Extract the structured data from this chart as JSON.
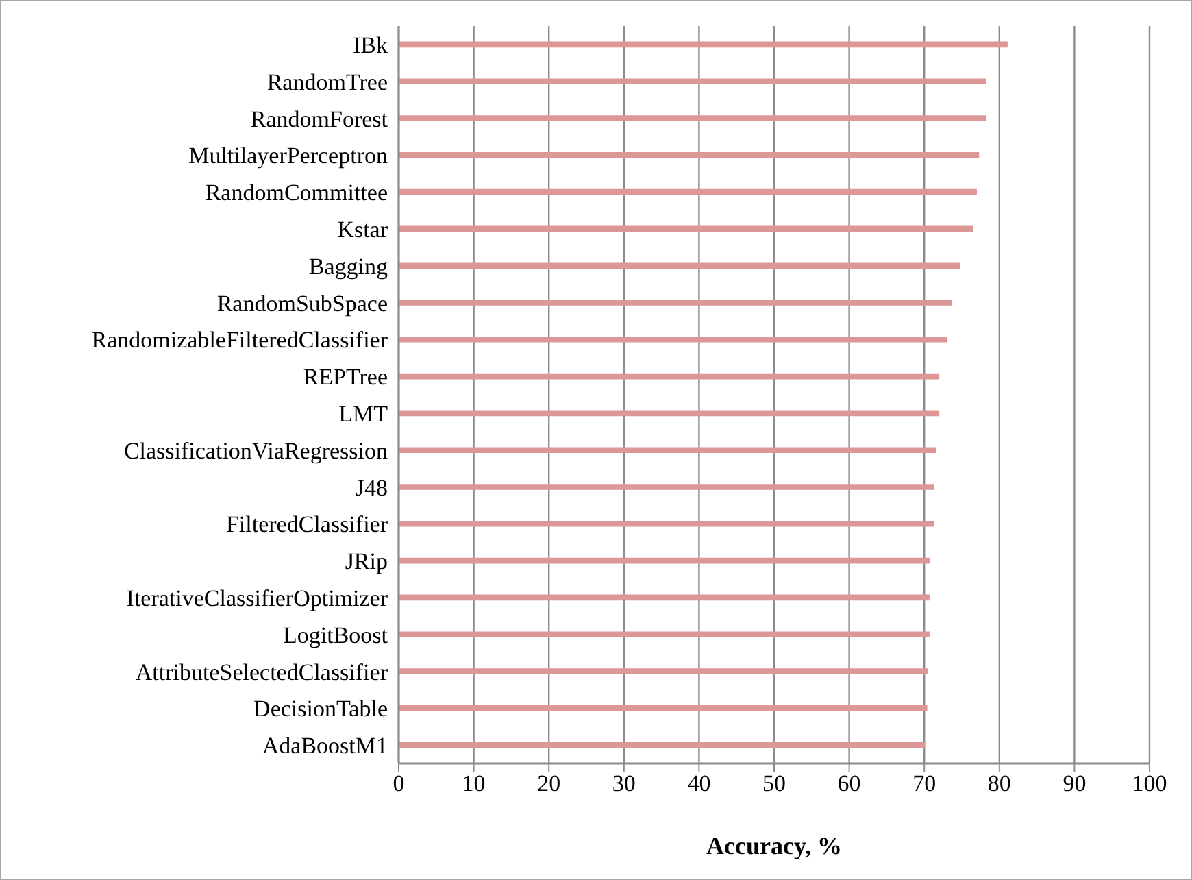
{
  "chart_data": {
    "type": "bar",
    "orientation": "horizontal",
    "xlabel": "Accuracy, %",
    "categories": [
      "IBk",
      "RandomTree",
      "RandomForest",
      "MultilayerPerceptron",
      "RandomCommittee",
      "Kstar",
      "Bagging",
      "RandomSubSpace",
      "RandomizableFilteredClassifier",
      "REPTree",
      "LMT",
      "ClassificationViaRegression",
      "J48",
      "FilteredClassifier",
      "JRip",
      "IterativeClassifierOptimizer",
      "LogitBoost",
      "AttributeSelectedClassifier",
      "DecisionTable",
      "AdaBoostM1"
    ],
    "values": [
      81.1,
      78.2,
      78.2,
      77.3,
      77.0,
      76.5,
      74.8,
      73.7,
      73.0,
      72.0,
      72.0,
      71.6,
      71.3,
      71.3,
      70.8,
      70.7,
      70.7,
      70.5,
      70.4,
      70.1
    ],
    "color": "#dc9796",
    "xlim": [
      0,
      100
    ],
    "xticks": [
      0,
      10,
      20,
      30,
      40,
      50,
      60,
      70,
      80,
      90,
      100
    ],
    "grid": "x"
  }
}
